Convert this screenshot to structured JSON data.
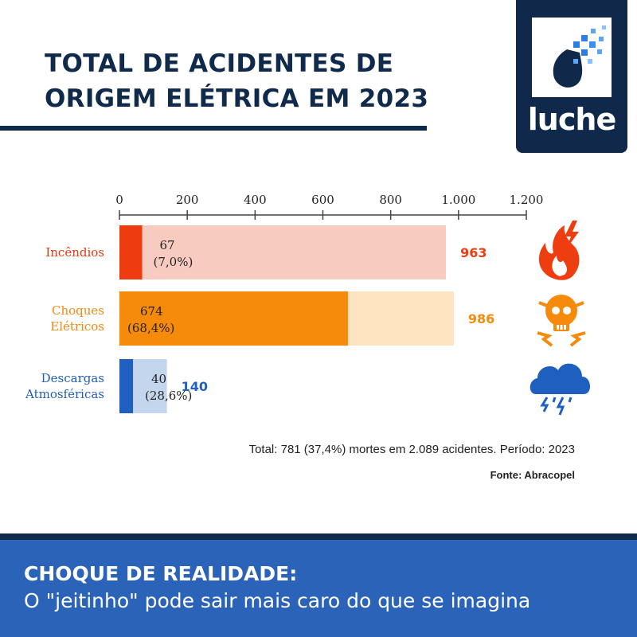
{
  "title": {
    "line1": "TOTAL DE ACIDENTES DE",
    "line2": "ORIGEM ELÉTRICA EM 2023"
  },
  "logo": {
    "text": "luche"
  },
  "chart_data": {
    "type": "bar",
    "orientation": "horizontal",
    "xlim": [
      0,
      1200
    ],
    "ticks": [
      "0",
      "200",
      "400",
      "600",
      "800",
      "1.000",
      "1.200"
    ],
    "tick_values": [
      0,
      200,
      400,
      600,
      800,
      1000,
      1200
    ],
    "categories": [
      {
        "label_lines": [
          "Incêndios"
        ],
        "total": 963,
        "total_label": "963",
        "deaths": 67,
        "deaths_label": "67",
        "pct_label": "(7,0%)",
        "color_dark": "#ee3b10",
        "color_light": "#f8cbc0",
        "label_color": "#e43a12",
        "icon": "fire-icon"
      },
      {
        "label_lines": [
          "Choques",
          "Elétricos"
        ],
        "total": 986,
        "total_label": "986",
        "deaths": 674,
        "deaths_label": "674",
        "pct_label": "(68,4%)",
        "color_dark": "#f58a0b",
        "color_light": "#fde3c0",
        "label_color": "#f08a10",
        "icon": "skull-shock-icon"
      },
      {
        "label_lines": [
          "Descargas",
          "Atmosféricas"
        ],
        "total": 140,
        "total_label": "140",
        "deaths": 40,
        "deaths_label": "40",
        "pct_label": "(28,6%)",
        "color_dark": "#1f5fc0",
        "color_light": "#c4d5ee",
        "label_color": "#1f5fb4",
        "icon": "storm-cloud-icon"
      }
    ]
  },
  "note": {
    "total": "Total:  781 (37,4%) mortes em 2.089 acidentes. Período: 2023",
    "source": "Fonte: Abracopel"
  },
  "banner": {
    "headline": "CHOQUE DE REALIDADE:",
    "subtitle": "O \"jeitinho\" pode sair mais caro do que se imagina"
  }
}
